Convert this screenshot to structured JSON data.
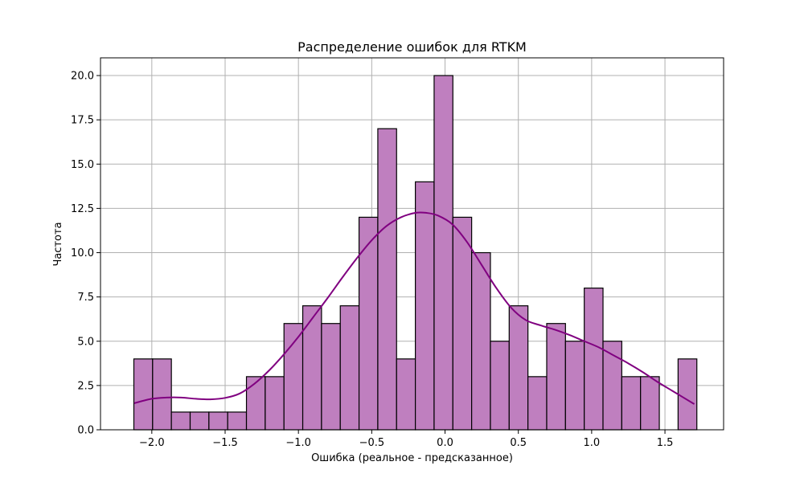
{
  "chart_data": {
    "type": "bar",
    "title": "Распределение ошибок для RTKM",
    "xlabel": "Ошибка (реальное - предсказанное)",
    "ylabel": "Частота",
    "xlim": [
      -2.35,
      1.9
    ],
    "ylim": [
      0,
      21
    ],
    "xticks": [
      -2.0,
      -1.5,
      -1.0,
      -0.5,
      0.0,
      0.5,
      1.0,
      1.5
    ],
    "xtick_labels": [
      "−2.0",
      "−1.5",
      "−1.0",
      "−0.5",
      "0.0",
      "0.5",
      "1.0",
      "1.5"
    ],
    "yticks": [
      0.0,
      2.5,
      5.0,
      7.5,
      10.0,
      12.5,
      15.0,
      17.5,
      20.0
    ],
    "ytick_labels": [
      "0.0",
      "2.5",
      "5.0",
      "7.5",
      "10.0",
      "12.5",
      "15.0",
      "17.5",
      "20.0"
    ],
    "grid": true,
    "bins": {
      "start": -2.1225,
      "width": 0.128,
      "counts": [
        4,
        4,
        1,
        1,
        1,
        1,
        3,
        3,
        6,
        7,
        6,
        7,
        12,
        17,
        4,
        14,
        20,
        12,
        10,
        5,
        7,
        3,
        6,
        5,
        8,
        5,
        3,
        3,
        0,
        4
      ]
    },
    "kde": {
      "x": [
        -2.12,
        -2.0,
        -1.9,
        -1.8,
        -1.7,
        -1.6,
        -1.5,
        -1.4,
        -1.3,
        -1.2,
        -1.1,
        -1.0,
        -0.9,
        -0.8,
        -0.7,
        -0.6,
        -0.5,
        -0.4,
        -0.3,
        -0.2,
        -0.13,
        -0.05,
        0.05,
        0.15,
        0.25,
        0.35,
        0.45,
        0.55,
        0.65,
        0.75,
        0.85,
        0.95,
        1.05,
        1.15,
        1.25,
        1.35,
        1.45,
        1.55,
        1.7
      ],
      "y": [
        1.5,
        1.75,
        1.82,
        1.82,
        1.75,
        1.72,
        1.8,
        2.05,
        2.6,
        3.35,
        4.25,
        5.25,
        6.35,
        7.45,
        8.6,
        9.7,
        10.7,
        11.5,
        12.0,
        12.25,
        12.25,
        12.1,
        11.6,
        10.6,
        9.3,
        8.0,
        6.9,
        6.2,
        5.9,
        5.65,
        5.35,
        5.0,
        4.65,
        4.2,
        3.75,
        3.25,
        2.7,
        2.2,
        1.45
      ]
    },
    "colors": {
      "bar_fill": "#bf7fbf",
      "bar_edge": "#000000",
      "kde_line": "#800080"
    }
  }
}
